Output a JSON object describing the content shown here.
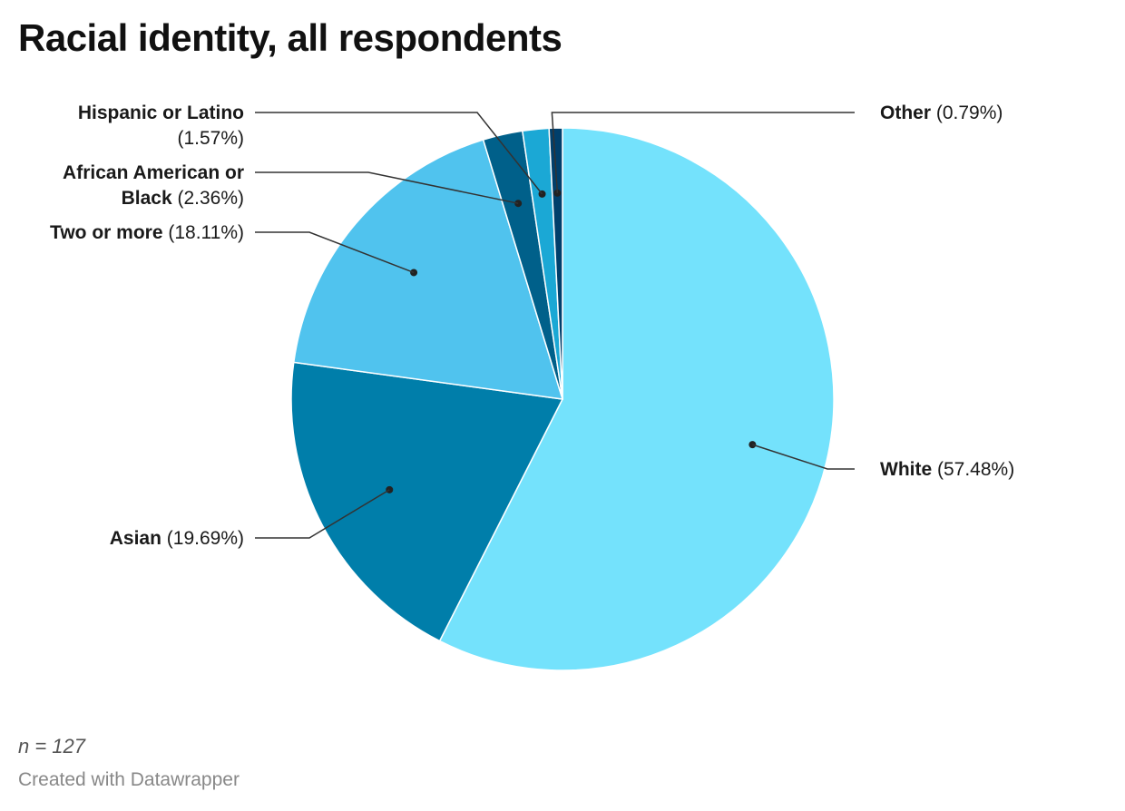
{
  "chart_data": {
    "type": "pie",
    "title": "Racial identity, all respondents",
    "slices": [
      {
        "label": "White",
        "value": 57.48,
        "value_text": "(57.48%)",
        "color": "#74e2fc"
      },
      {
        "label": "Asian",
        "value": 19.69,
        "value_text": "(19.69%)",
        "color": "#007eaa"
      },
      {
        "label": "Two or more",
        "value": 18.11,
        "value_text": "(18.11%)",
        "color": "#50c3ee"
      },
      {
        "label": "African American or Black",
        "value": 2.36,
        "value_text": "(2.36%)",
        "color": "#00608a"
      },
      {
        "label": "Hispanic or Latino",
        "value": 1.57,
        "value_text": "(1.57%)",
        "color": "#1ba8d5"
      },
      {
        "label": "Other",
        "value": 0.79,
        "value_text": "(0.79%)",
        "color": "#003f6b"
      }
    ]
  },
  "footer": {
    "note": "n = 127",
    "credit": "Created with Datawrapper"
  }
}
